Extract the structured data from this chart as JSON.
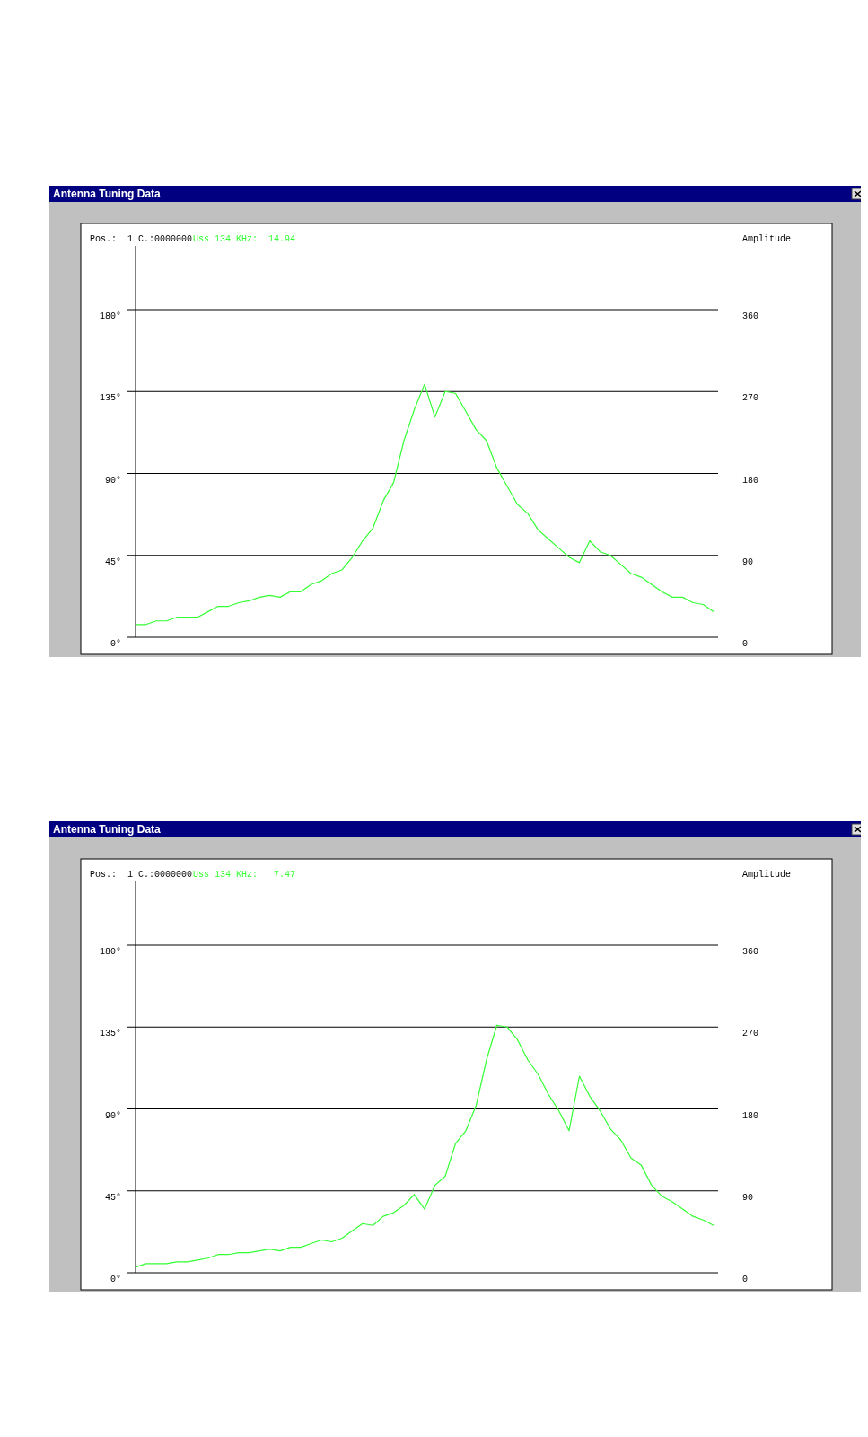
{
  "chart_data": [
    {
      "type": "line",
      "title": "Antenna Tuning Data",
      "y2label": "Amplitude",
      "annotations": [
        "Pos.:  1 C.:0000000",
        "Uss 134 KHz:  14.94"
      ],
      "grid": "y",
      "marker": "none",
      "tick_labels": "y",
      "categories": [
        null,
        null,
        null,
        null,
        null,
        null,
        null,
        null,
        null,
        null,
        null,
        null,
        null,
        null,
        null,
        null,
        null,
        null,
        null,
        null,
        null,
        null,
        null,
        null,
        null,
        null,
        null,
        null,
        null,
        null,
        null,
        null,
        null,
        null,
        null,
        null,
        null,
        null,
        null,
        null,
        null,
        null,
        null,
        null,
        null,
        null,
        null,
        null,
        null,
        null,
        null,
        null,
        null,
        null,
        null,
        null,
        null
      ],
      "ylim": [
        0,
        215
      ],
      "yticks": [
        {
          "value": 0,
          "label": "0°"
        },
        {
          "value": 45,
          "label": "45°"
        },
        {
          "value": 90,
          "label": "90°"
        },
        {
          "value": 135,
          "label": "135°"
        },
        {
          "value": 180,
          "label": "180°"
        }
      ],
      "y2lim": [
        0,
        430
      ],
      "y2ticks": [
        0,
        90,
        180,
        270,
        360
      ],
      "series": [
        {
          "color": "#33ff33",
          "values": [
            7,
            7,
            9,
            9,
            11,
            11,
            11,
            14,
            17,
            17,
            19,
            20,
            22,
            23,
            22,
            25,
            25,
            29,
            31,
            35,
            37,
            44,
            53,
            60,
            75,
            85,
            108,
            125,
            139,
            121,
            135,
            134,
            124,
            114,
            108,
            93,
            83,
            73,
            68,
            59,
            54,
            49,
            44,
            41,
            53,
            47,
            45,
            40,
            35,
            33,
            29,
            25,
            22,
            22,
            19,
            18,
            14
          ]
        }
      ]
    },
    {
      "type": "line",
      "title": "Antenna Tuning Data",
      "y2label": "Amplitude",
      "annotations": [
        "Pos.:  1 C.:0000000",
        "Uss 134 KHz:   7.47"
      ],
      "grid": "y",
      "marker": "none",
      "tick_labels": "y",
      "categories": [
        null,
        null,
        null,
        null,
        null,
        null,
        null,
        null,
        null,
        null,
        null,
        null,
        null,
        null,
        null,
        null,
        null,
        null,
        null,
        null,
        null,
        null,
        null,
        null,
        null,
        null,
        null,
        null,
        null,
        null,
        null,
        null,
        null,
        null,
        null,
        null,
        null,
        null,
        null,
        null,
        null,
        null,
        null,
        null,
        null,
        null,
        null,
        null,
        null,
        null,
        null,
        null,
        null,
        null,
        null,
        null,
        null
      ],
      "ylim": [
        0,
        215
      ],
      "yticks": [
        {
          "value": 0,
          "label": "0°"
        },
        {
          "value": 45,
          "label": "45°"
        },
        {
          "value": 90,
          "label": "90°"
        },
        {
          "value": 135,
          "label": "135°"
        },
        {
          "value": 180,
          "label": "180°"
        }
      ],
      "y2lim": [
        0,
        430
      ],
      "y2ticks": [
        0,
        90,
        180,
        270,
        360
      ],
      "series": [
        {
          "color": "#33ff33",
          "values": [
            3,
            5,
            5,
            5,
            6,
            6,
            7,
            8,
            10,
            10,
            11,
            11,
            12,
            13,
            12,
            14,
            14,
            16,
            18,
            17,
            19,
            23,
            27,
            26,
            31,
            33,
            37,
            43,
            35,
            48,
            53,
            71,
            78,
            92,
            117,
            136,
            135,
            128,
            117,
            109,
            98,
            89,
            78,
            108,
            97,
            89,
            79,
            73,
            63,
            59,
            48,
            42,
            39,
            35,
            31,
            29,
            26
          ]
        }
      ]
    }
  ]
}
